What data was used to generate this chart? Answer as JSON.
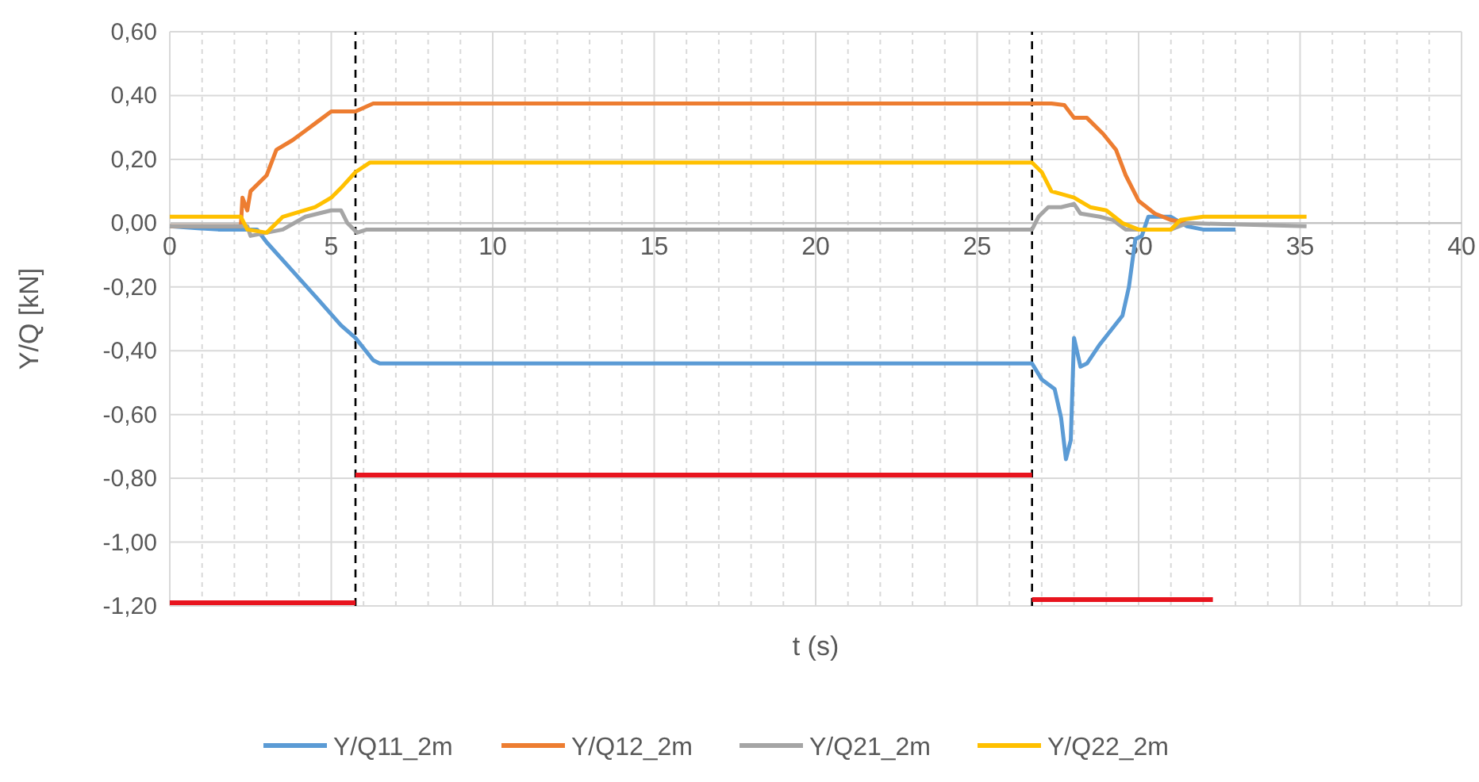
{
  "chart_data": {
    "type": "line",
    "xlabel": "t (s)",
    "ylabel": "Y/Q [kN]",
    "xlim": [
      0,
      40
    ],
    "ylim": [
      -1.2,
      0.6
    ],
    "xticks": [
      0,
      {
        "value": 1,
        "label": null
      },
      {
        "value": 2,
        "label": null
      },
      {
        "value": 3,
        "label": null
      },
      {
        "value": 4,
        "label": null
      },
      5,
      {
        "value": 6,
        "label": null
      },
      {
        "value": 7,
        "label": null
      },
      {
        "value": 8,
        "label": null
      },
      {
        "value": 9,
        "label": null
      },
      10,
      {
        "value": 11,
        "label": null
      },
      {
        "value": 12,
        "label": null
      },
      {
        "value": 13,
        "label": null
      },
      {
        "value": 14,
        "label": null
      },
      15,
      {
        "value": 16,
        "label": null
      },
      {
        "value": 17,
        "label": null
      },
      {
        "value": 18,
        "label": null
      },
      {
        "value": 19,
        "label": null
      },
      20,
      {
        "value": 21,
        "label": null
      },
      {
        "value": 22,
        "label": null
      },
      {
        "value": 23,
        "label": null
      },
      {
        "value": 24,
        "label": null
      },
      25,
      {
        "value": 26,
        "label": null
      },
      {
        "value": 27,
        "label": null
      },
      {
        "value": 28,
        "label": null
      },
      {
        "value": 29,
        "label": null
      },
      30,
      {
        "value": 31,
        "label": null
      },
      {
        "value": 32,
        "label": null
      },
      {
        "value": 33,
        "label": null
      },
      {
        "value": 34,
        "label": null
      },
      35,
      {
        "value": 36,
        "label": null
      },
      {
        "value": 37,
        "label": null
      },
      {
        "value": 38,
        "label": null
      },
      {
        "value": 39,
        "label": null
      },
      40
    ],
    "yticks": [
      {
        "value": -1.2,
        "label": "-1,20"
      },
      {
        "value": -1,
        "label": "-1,00"
      },
      {
        "value": -0.8,
        "label": "-0,80"
      },
      {
        "value": -0.6,
        "label": "-0,60"
      },
      {
        "value": -0.4,
        "label": "-0,40"
      },
      {
        "value": -0.2,
        "label": "-0,20"
      },
      {
        "value": 0,
        "label": "0,00"
      },
      {
        "value": 0.2,
        "label": "0,20"
      },
      {
        "value": 0.4,
        "label": "0,40"
      },
      {
        "value": 0.6,
        "label": "0,60"
      }
    ],
    "grid": true,
    "legend": "bottom",
    "marker": "none",
    "line_style": "solid",
    "ref_lines": [
      {
        "axis": "x",
        "value": 5.75,
        "color": "#000000",
        "line_style": "dashed"
      },
      {
        "axis": "x",
        "value": 26.7,
        "color": "#000000",
        "line_style": "dashed"
      }
    ],
    "series": [
      {
        "name": "Y/Q11_2m",
        "color": "#5b9bd5",
        "x": [
          0,
          1.5,
          2.7,
          3,
          3.8,
          4.6,
          5.3,
          5.75,
          6.3,
          6.5,
          26.7,
          27,
          27.4,
          27.6,
          27.75,
          27.9,
          28,
          28.2,
          28.4,
          28.8,
          29.5,
          29.7,
          29.9,
          30.1,
          30.3,
          31,
          31.5,
          32,
          33
        ],
        "values": [
          -0.01,
          -0.02,
          -0.02,
          -0.06,
          -0.15,
          -0.24,
          -0.32,
          -0.36,
          -0.43,
          -0.44,
          -0.44,
          -0.49,
          -0.52,
          -0.61,
          -0.74,
          -0.68,
          -0.36,
          -0.45,
          -0.44,
          -0.38,
          -0.29,
          -0.2,
          -0.05,
          -0.04,
          0.02,
          0.02,
          -0.01,
          -0.02,
          -0.02
        ]
      },
      {
        "name": "Y/Q12_2m",
        "color": "#ed7d31",
        "x": [
          0,
          2.2,
          2.25,
          2.4,
          2.5,
          3,
          3.3,
          3.8,
          4.2,
          4.6,
          5,
          5.75,
          6.3,
          27.3,
          27.7,
          28,
          28.4,
          28.9,
          29.3,
          29.6,
          30,
          30.5,
          31,
          31.5
        ],
        "values": [
          -0.01,
          -0.01,
          0.08,
          0.04,
          0.1,
          0.15,
          0.23,
          0.26,
          0.29,
          0.32,
          0.35,
          0.35,
          0.375,
          0.375,
          0.37,
          0.33,
          0.33,
          0.28,
          0.23,
          0.15,
          0.07,
          0.03,
          0.01,
          0
        ]
      },
      {
        "name": "Y/Q21_2m",
        "color": "#a5a5a5",
        "x": [
          0,
          2.4,
          2.5,
          3.5,
          4.2,
          5,
          5.3,
          5.5,
          5.8,
          6.1,
          26.7,
          26.9,
          27.2,
          27.6,
          28,
          28.2,
          28.8,
          29.2,
          29.6,
          31,
          31.5,
          35.2
        ],
        "values": [
          -0.01,
          -0.01,
          -0.04,
          -0.02,
          0.02,
          0.04,
          0.04,
          0,
          -0.03,
          -0.02,
          -0.02,
          0.02,
          0.05,
          0.05,
          0.06,
          0.03,
          0.02,
          0.01,
          -0.02,
          -0.02,
          0,
          -0.01
        ]
      },
      {
        "name": "Y/Q22_2m",
        "color": "#ffc000",
        "x": [
          0,
          2.2,
          2.4,
          3,
          3.5,
          4.5,
          5,
          5.3,
          5.75,
          6.2,
          26.7,
          27,
          27.3,
          28,
          28.5,
          29,
          29.5,
          30,
          31,
          31.3,
          32,
          35.2
        ],
        "values": [
          0.02,
          0.02,
          -0.02,
          -0.03,
          0.02,
          0.05,
          0.08,
          0.11,
          0.16,
          0.19,
          0.19,
          0.16,
          0.1,
          0.08,
          0.05,
          0.04,
          0,
          -0.02,
          -0.02,
          0.01,
          0.02,
          0.02
        ]
      },
      {
        "color": "#e8141e",
        "x": [
          0,
          5.75
        ],
        "values": [
          -1.19,
          -1.19
        ]
      },
      {
        "color": "#e8141e",
        "x": [
          5.75,
          26.7
        ],
        "values": [
          -0.79,
          -0.79
        ]
      },
      {
        "color": "#e8141e",
        "x": [
          26.7,
          32.3
        ],
        "values": [
          -1.18,
          -1.18
        ]
      }
    ]
  }
}
